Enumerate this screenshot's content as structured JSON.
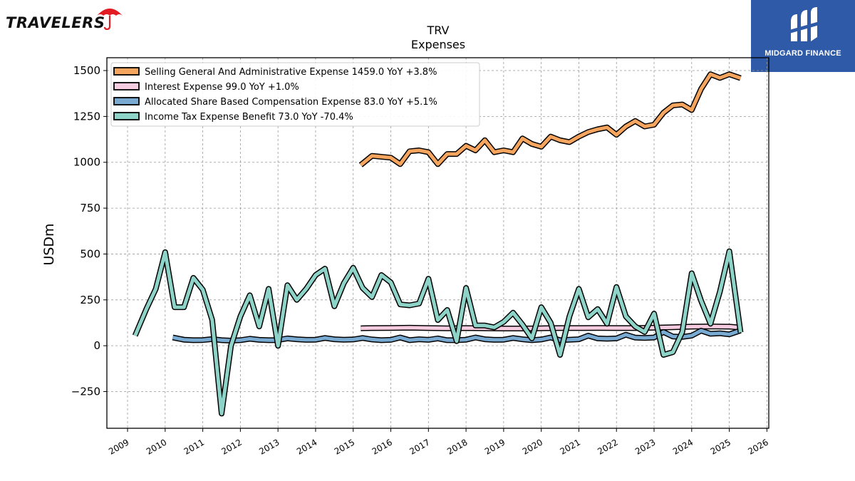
{
  "branding": {
    "left_logo": "TRAVELERS",
    "right_logo": "MIDGARD FINANCE",
    "umbrella_color": "#e31b23",
    "right_bg": "#2f5aa8"
  },
  "chart_data": {
    "type": "line",
    "title": "TRV",
    "subtitle": "Expenses",
    "ylabel": "USDm",
    "xlabel": "",
    "ylim": [
      -450,
      1570
    ],
    "xlim": [
      2008.45,
      2026.05
    ],
    "yticks": [
      -250,
      0,
      250,
      500,
      750,
      1000,
      1250,
      1500
    ],
    "ytick_labels": [
      "−250",
      "0",
      "250",
      "500",
      "750",
      "1000",
      "1250",
      "1500"
    ],
    "xticks": [
      2009,
      2010,
      2011,
      2012,
      2013,
      2014,
      2015,
      2016,
      2017,
      2018,
      2019,
      2020,
      2021,
      2022,
      2023,
      2024,
      2025,
      2026
    ],
    "xtick_labels": [
      "2009",
      "2010",
      "2011",
      "2012",
      "2013",
      "2014",
      "2015",
      "2016",
      "2017",
      "2018",
      "2019",
      "2020",
      "2021",
      "2022",
      "2023",
      "2024",
      "2025",
      "2026"
    ],
    "grid": true,
    "legend_position": "top-left",
    "series": [
      {
        "name": "Selling General And Administrative Expense",
        "legend": "Selling General And Administrative Expense  1459.0 YoY +3.8%",
        "color": "#f6a55f",
        "x": [
          2015.2,
          2015.5,
          2016.0,
          2016.25,
          2016.5,
          2016.75,
          2017.0,
          2017.25,
          2017.5,
          2017.75,
          2018.0,
          2018.25,
          2018.5,
          2018.75,
          2019.0,
          2019.25,
          2019.5,
          2019.75,
          2020.0,
          2020.25,
          2020.5,
          2020.75,
          2021.0,
          2021.25,
          2021.5,
          2021.75,
          2022.0,
          2022.25,
          2022.5,
          2022.75,
          2023.0,
          2023.25,
          2023.5,
          2023.75,
          2024.0,
          2024.25,
          2024.5,
          2024.75,
          2025.0,
          2025.3
        ],
        "values": [
          985,
          1035,
          1025,
          990,
          1060,
          1065,
          1055,
          990,
          1045,
          1045,
          1090,
          1065,
          1120,
          1055,
          1065,
          1055,
          1130,
          1100,
          1085,
          1140,
          1120,
          1110,
          1140,
          1165,
          1180,
          1190,
          1150,
          1195,
          1225,
          1195,
          1205,
          1270,
          1310,
          1315,
          1285,
          1400,
          1480,
          1460,
          1480,
          1459
        ]
      },
      {
        "name": "Interest Expense",
        "legend": "Interest Expense  99.0 YoY +1.0%",
        "color": "#f7cce0",
        "x": [
          2015.2,
          2015.5,
          2016.0,
          2016.5,
          2017.0,
          2017.5,
          2018.0,
          2018.5,
          2019.0,
          2019.5,
          2020.0,
          2020.5,
          2021.0,
          2021.5,
          2022.0,
          2022.5,
          2023.0,
          2023.5,
          2024.0,
          2024.5,
          2025.0,
          2025.3
        ],
        "values": [
          95,
          96,
          97,
          98,
          96,
          95,
          96,
          95,
          94,
          94,
          95,
          96,
          96,
          97,
          96,
          96,
          98,
          101,
          104,
          105,
          104,
          99
        ]
      },
      {
        "name": "Allocated Share Based Compensation Expense",
        "legend": "Allocated Share Based Compensation Expense  83.0 YoY +5.1%",
        "color": "#79aad2",
        "x": [
          2010.2,
          2010.5,
          2010.75,
          2011.0,
          2011.25,
          2011.5,
          2011.75,
          2012.0,
          2012.25,
          2012.5,
          2012.75,
          2013.0,
          2013.25,
          2013.5,
          2013.75,
          2014.0,
          2014.25,
          2014.5,
          2014.75,
          2015.0,
          2015.25,
          2015.5,
          2015.75,
          2016.0,
          2016.25,
          2016.5,
          2016.75,
          2017.0,
          2017.25,
          2017.5,
          2017.75,
          2018.0,
          2018.25,
          2018.5,
          2018.75,
          2019.0,
          2019.25,
          2019.5,
          2019.75,
          2020.0,
          2020.25,
          2020.5,
          2020.75,
          2021.0,
          2021.25,
          2021.5,
          2021.75,
          2022.0,
          2022.25,
          2022.5,
          2022.75,
          2023.0,
          2023.25,
          2023.5,
          2023.75,
          2024.0,
          2024.25,
          2024.5,
          2024.75,
          2025.0,
          2025.3
        ],
        "values": [
          45,
          33,
          30,
          31,
          36,
          30,
          28,
          30,
          38,
          32,
          30,
          31,
          40,
          35,
          32,
          33,
          42,
          35,
          33,
          34,
          42,
          34,
          30,
          32,
          45,
          30,
          35,
          32,
          40,
          30,
          30,
          33,
          45,
          35,
          32,
          33,
          42,
          35,
          30,
          34,
          45,
          30,
          33,
          35,
          55,
          40,
          38,
          40,
          60,
          44,
          42,
          45,
          75,
          50,
          48,
          55,
          82,
          65,
          68,
          62,
          83
        ]
      },
      {
        "name": "Income Tax Expense Benefit",
        "legend": "Income Tax Expense Benefit  73.0 YoY -70.4%",
        "color": "#8dd3c7",
        "x": [
          2009.2,
          2009.5,
          2009.75,
          2010.0,
          2010.25,
          2010.5,
          2010.75,
          2011.0,
          2011.25,
          2011.5,
          2011.75,
          2012.0,
          2012.25,
          2012.5,
          2012.75,
          2013.0,
          2013.25,
          2013.5,
          2013.75,
          2014.0,
          2014.25,
          2014.5,
          2014.75,
          2015.0,
          2015.25,
          2015.5,
          2015.75,
          2016.0,
          2016.25,
          2016.5,
          2016.75,
          2017.0,
          2017.25,
          2017.5,
          2017.75,
          2018.0,
          2018.25,
          2018.5,
          2018.75,
          2019.0,
          2019.25,
          2019.5,
          2019.75,
          2020.0,
          2020.25,
          2020.5,
          2020.75,
          2021.0,
          2021.25,
          2021.5,
          2021.75,
          2022.0,
          2022.25,
          2022.5,
          2022.75,
          2023.0,
          2023.25,
          2023.5,
          2023.75,
          2024.0,
          2024.25,
          2024.5,
          2024.75,
          2025.0,
          2025.3
        ],
        "values": [
          55,
          200,
          310,
          510,
          210,
          210,
          370,
          305,
          140,
          -370,
          0,
          160,
          275,
          105,
          310,
          0,
          330,
          250,
          310,
          385,
          420,
          215,
          340,
          425,
          315,
          265,
          385,
          345,
          225,
          220,
          230,
          365,
          140,
          195,
          25,
          315,
          110,
          110,
          100,
          130,
          180,
          115,
          40,
          210,
          125,
          -50,
          160,
          310,
          155,
          200,
          120,
          320,
          160,
          105,
          75,
          175,
          -50,
          -35,
          75,
          395,
          245,
          120,
          295,
          515,
          73
        ]
      }
    ]
  }
}
